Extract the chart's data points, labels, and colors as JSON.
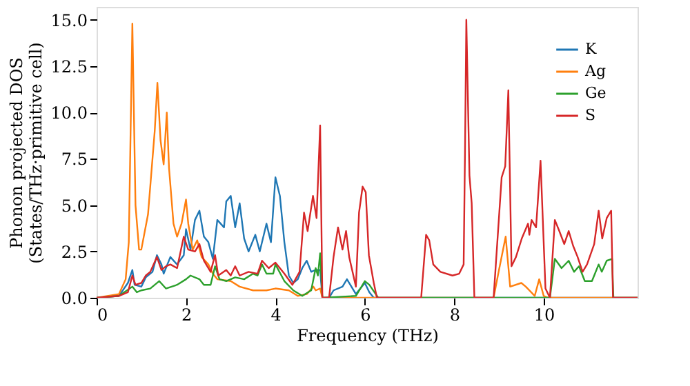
{
  "chart_data": {
    "type": "line",
    "xlabel": "Frequency (THz)",
    "ylabel": "Phonon projected DOS\n(States/THz·primitive cell)",
    "xlim": [
      0,
      12.1
    ],
    "xticks": [
      0,
      2,
      4,
      6,
      8,
      10
    ],
    "ylim": [
      0,
      15.7
    ],
    "yticks": [
      {
        "value": 0,
        "label": "0.0"
      },
      {
        "value": 2.5,
        "label": "2.5"
      },
      {
        "value": 5,
        "label": "5.0"
      },
      {
        "value": 7.5,
        "label": "7.5"
      },
      {
        "value": 10,
        "label": "10.0"
      },
      {
        "value": 12.5,
        "label": "12.5"
      },
      {
        "value": 15,
        "label": "15.0"
      }
    ],
    "grid": false,
    "legend": "top right",
    "line_style": "solid",
    "marker": "none",
    "series": [
      {
        "name": "K",
        "color": "#1f77b4",
        "x": [
          0,
          0.5,
          0.7,
          0.8,
          0.85,
          1.0,
          1.1,
          1.25,
          1.35,
          1.45,
          1.5,
          1.65,
          1.8,
          1.95,
          2.0,
          2.1,
          2.2,
          2.3,
          2.4,
          2.5,
          2.6,
          2.7,
          2.85,
          2.9,
          3.0,
          3.1,
          3.2,
          3.3,
          3.4,
          3.55,
          3.65,
          3.8,
          3.9,
          4.0,
          4.1,
          4.2,
          4.3,
          4.4,
          4.5,
          4.6,
          4.7,
          4.8,
          4.9,
          5.0,
          5.05,
          5.2,
          5.3,
          5.5,
          5.6,
          5.7,
          5.8,
          5.9,
          6.0,
          6.1,
          6.2,
          12.1
        ],
        "values": [
          0,
          0.1,
          0.8,
          1.5,
          0.7,
          0.6,
          1.1,
          1.4,
          2.3,
          1.8,
          1.3,
          2.2,
          1.8,
          2.3,
          3.7,
          2.6,
          4.2,
          4.7,
          3.3,
          3.0,
          2.1,
          4.2,
          3.8,
          5.2,
          5.5,
          3.8,
          5.1,
          3.2,
          2.5,
          3.4,
          2.5,
          4.0,
          3.0,
          6.5,
          5.5,
          3.0,
          1.2,
          0.8,
          1.0,
          1.6,
          2.0,
          1.4,
          1.5,
          1.5,
          0,
          0,
          0.4,
          0.6,
          1.0,
          0.6,
          0.2,
          0.5,
          0.8,
          0.3,
          0,
          0
        ]
      },
      {
        "name": "Ag",
        "color": "#ff7f0e",
        "x": [
          0,
          0.5,
          0.65,
          0.72,
          0.8,
          0.87,
          0.95,
          1.0,
          1.15,
          1.3,
          1.36,
          1.43,
          1.5,
          1.57,
          1.62,
          1.72,
          1.8,
          1.9,
          2.0,
          2.05,
          2.15,
          2.25,
          2.35,
          2.5,
          2.6,
          2.7,
          3.0,
          3.2,
          3.5,
          3.8,
          4.0,
          4.3,
          4.5,
          4.7,
          4.85,
          4.9,
          5.0,
          5.05,
          8.88,
          9.0,
          9.15,
          9.25,
          9.5,
          9.6,
          9.8,
          9.9,
          10.0,
          10.1,
          12.1
        ],
        "values": [
          0,
          0.2,
          1.0,
          3.0,
          14.8,
          5.0,
          2.6,
          2.6,
          4.5,
          9.0,
          11.6,
          8.5,
          7.2,
          10.0,
          7.0,
          4.0,
          3.3,
          4.0,
          5.3,
          4.0,
          2.6,
          3.1,
          2.2,
          1.8,
          1.3,
          1.0,
          0.9,
          0.6,
          0.4,
          0.4,
          0.5,
          0.4,
          0.1,
          0.2,
          0.6,
          0.4,
          0.5,
          0,
          0,
          1.5,
          3.3,
          0.6,
          0.8,
          0.6,
          0.1,
          1.0,
          0.1,
          0,
          0
        ]
      },
      {
        "name": "Ge",
        "color": "#2ca02c",
        "x": [
          0,
          0.5,
          0.8,
          0.9,
          1.0,
          1.2,
          1.4,
          1.55,
          1.8,
          2.0,
          2.1,
          2.3,
          2.4,
          2.55,
          2.65,
          2.75,
          2.9,
          3.1,
          3.3,
          3.5,
          3.6,
          3.7,
          3.8,
          3.95,
          4.0,
          4.2,
          4.4,
          4.6,
          4.8,
          4.9,
          4.95,
          5.0,
          5.05,
          5.8,
          6.0,
          6.1,
          6.3,
          10.14,
          10.25,
          10.4,
          10.56,
          10.68,
          10.79,
          10.92,
          11.08,
          11.13,
          11.23,
          11.3,
          11.41,
          11.53,
          11.56,
          12.1
        ],
        "values": [
          0,
          0.1,
          0.6,
          0.3,
          0.4,
          0.5,
          0.9,
          0.5,
          0.7,
          1.0,
          1.2,
          1.0,
          0.7,
          0.7,
          1.7,
          1.0,
          0.9,
          1.1,
          1.0,
          1.3,
          1.2,
          1.8,
          1.3,
          1.3,
          1.8,
          0.9,
          0.4,
          0.1,
          0.4,
          1.6,
          1.2,
          2.4,
          0,
          0.1,
          0.9,
          0.7,
          0,
          0,
          2.1,
          1.6,
          2.0,
          1.4,
          1.7,
          0.9,
          0.9,
          1.2,
          1.8,
          1.4,
          2.0,
          2.1,
          0,
          0
        ]
      },
      {
        "name": "S",
        "color": "#d62728",
        "x": [
          0,
          0.5,
          0.7,
          0.8,
          0.87,
          1.0,
          1.1,
          1.2,
          1.35,
          1.45,
          1.55,
          1.65,
          1.8,
          1.95,
          2.05,
          2.2,
          2.3,
          2.4,
          2.55,
          2.65,
          2.72,
          2.9,
          3.0,
          3.1,
          3.2,
          3.4,
          3.6,
          3.7,
          3.85,
          4.0,
          4.1,
          4.2,
          4.38,
          4.54,
          4.64,
          4.72,
          4.84,
          4.92,
          5.0,
          5.05,
          5.2,
          5.3,
          5.4,
          5.5,
          5.58,
          5.65,
          5.8,
          5.87,
          5.95,
          6.02,
          6.09,
          6.2,
          6.27,
          7.26,
          7.37,
          7.44,
          7.53,
          7.69,
          7.96,
          8.11,
          8.21,
          8.24,
          8.27,
          8.34,
          8.39,
          8.45,
          8.88,
          9.06,
          9.14,
          9.21,
          9.28,
          9.38,
          9.51,
          9.65,
          9.68,
          9.73,
          9.83,
          9.93,
          10.04,
          10.14,
          10.25,
          10.35,
          10.46,
          10.56,
          10.66,
          10.76,
          10.87,
          10.97,
          11.13,
          11.23,
          11.31,
          11.41,
          11.51,
          11.55,
          12.1
        ],
        "values": [
          0,
          0.1,
          0.3,
          1.2,
          0.7,
          0.8,
          1.2,
          1.4,
          2.2,
          1.5,
          1.7,
          1.8,
          1.6,
          3.3,
          2.6,
          2.5,
          2.9,
          2.0,
          1.4,
          2.3,
          1.2,
          1.5,
          1.2,
          1.7,
          1.2,
          1.4,
          1.3,
          2.0,
          1.6,
          1.9,
          1.6,
          1.3,
          0.7,
          1.4,
          4.6,
          3.6,
          5.5,
          4.3,
          9.3,
          0,
          0,
          2.2,
          3.8,
          2.6,
          3.6,
          2.2,
          0.6,
          4.6,
          6.0,
          5.7,
          2.3,
          0.8,
          0,
          0,
          3.4,
          3.1,
          1.8,
          1.4,
          1.2,
          1.3,
          1.8,
          7.8,
          15.0,
          6.6,
          5.1,
          0,
          0,
          6.5,
          7.1,
          11.2,
          1.7,
          2.2,
          3.2,
          4.0,
          3.4,
          4.2,
          3.8,
          7.4,
          0.5,
          0,
          4.2,
          3.6,
          2.9,
          3.6,
          2.8,
          2.2,
          1.4,
          1.8,
          2.9,
          4.7,
          3.2,
          4.3,
          4.7,
          0,
          0
        ]
      }
    ]
  }
}
